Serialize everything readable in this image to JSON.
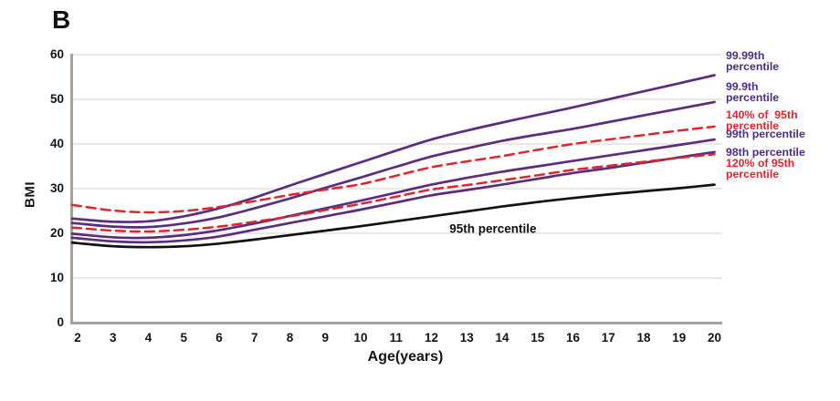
{
  "panel_label": "B",
  "colors": {
    "purple": "#5b2c80",
    "red": "#e1232b",
    "black": "#111111",
    "purple_text": "#4e2b87",
    "red_text": "#e1232b",
    "axis": "#a8a099",
    "grid": "#ebe8e3",
    "text": "#141414"
  },
  "chart_data": {
    "type": "line",
    "title": "",
    "xlabel": "Age(years)",
    "ylabel": "BMI",
    "xlim": [
      2,
      20
    ],
    "ylim": [
      0,
      60
    ],
    "x_ticks": [
      2,
      3,
      4,
      5,
      6,
      7,
      8,
      9,
      10,
      11,
      12,
      13,
      14,
      15,
      16,
      17,
      18,
      19,
      20
    ],
    "y_ticks": [
      0,
      10,
      20,
      30,
      40,
      50,
      60
    ],
    "grid": "horizontal",
    "legend_position": "right-outside",
    "x": [
      2,
      3,
      4,
      5,
      6,
      7,
      8,
      9,
      10,
      11,
      12,
      13,
      14,
      15,
      16,
      17,
      18,
      19,
      20
    ],
    "series": [
      {
        "name": "99.99th percentile",
        "color": "purple",
        "style": "solid",
        "values": [
          23.2,
          22.6,
          22.7,
          23.8,
          25.6,
          28.0,
          30.7,
          33.3,
          35.9,
          38.5,
          41.0,
          43.0,
          44.8,
          46.5,
          48.2,
          50.0,
          51.8,
          53.6,
          55.4
        ]
      },
      {
        "name": "99.9th percentile",
        "color": "purple",
        "style": "solid",
        "values": [
          22.2,
          21.5,
          21.4,
          22.2,
          23.6,
          25.6,
          27.8,
          30.2,
          32.5,
          34.9,
          37.2,
          39.0,
          40.7,
          42.1,
          43.4,
          44.9,
          46.4,
          47.9,
          49.4
        ]
      },
      {
        "name": "140% of 95th percentile",
        "color": "red",
        "style": "dashed",
        "values": [
          26.2,
          25.1,
          24.7,
          25.0,
          25.9,
          27.2,
          28.6,
          29.8,
          31.0,
          32.9,
          34.8,
          36.1,
          37.3,
          38.7,
          40.0,
          41.0,
          42.0,
          43.0,
          43.9
        ]
      },
      {
        "name": "99th percentile",
        "color": "purple",
        "style": "solid",
        "values": [
          19.8,
          19.1,
          19.0,
          19.6,
          20.7,
          22.2,
          23.9,
          25.6,
          27.3,
          29.1,
          30.9,
          32.4,
          33.8,
          35.0,
          36.2,
          37.4,
          38.6,
          39.8,
          41.0
        ]
      },
      {
        "name": "98th percentile",
        "color": "purple",
        "style": "solid",
        "values": [
          18.9,
          18.2,
          18.0,
          18.4,
          19.3,
          20.8,
          22.3,
          23.8,
          25.3,
          26.9,
          28.5,
          29.7,
          30.9,
          32.2,
          33.5,
          34.6,
          35.8,
          37.0,
          38.2
        ]
      },
      {
        "name": "120% of 95th percentile",
        "color": "red",
        "style": "dashed",
        "values": [
          21.2,
          20.6,
          20.4,
          20.8,
          21.5,
          22.6,
          23.8,
          25.2,
          26.6,
          28.2,
          29.8,
          30.8,
          31.9,
          33.0,
          34.2,
          35.1,
          36.0,
          36.9,
          37.7
        ]
      },
      {
        "name": "95th percentile",
        "color": "black",
        "style": "solid",
        "values": [
          17.8,
          17.1,
          16.9,
          17.1,
          17.7,
          18.6,
          19.6,
          20.6,
          21.6,
          22.7,
          23.8,
          24.9,
          26.0,
          27.0,
          27.9,
          28.7,
          29.4,
          30.1,
          30.9
        ]
      }
    ],
    "annotation": {
      "text": "95th percentile",
      "age": 13.74,
      "bmi": 21.0
    }
  },
  "legend": {
    "items": [
      {
        "label": "99.99th\npercentile",
        "color": "purple"
      },
      {
        "label": "99.9th\npercentile",
        "color": "purple"
      },
      {
        "label": "140% of  95th\npercentile",
        "color": "red"
      },
      {
        "label": "99th percentile",
        "color": "purple"
      },
      {
        "label": "98th percentile",
        "color": "purple"
      },
      {
        "label": "120% of 95th\npercentile",
        "color": "red"
      }
    ]
  }
}
